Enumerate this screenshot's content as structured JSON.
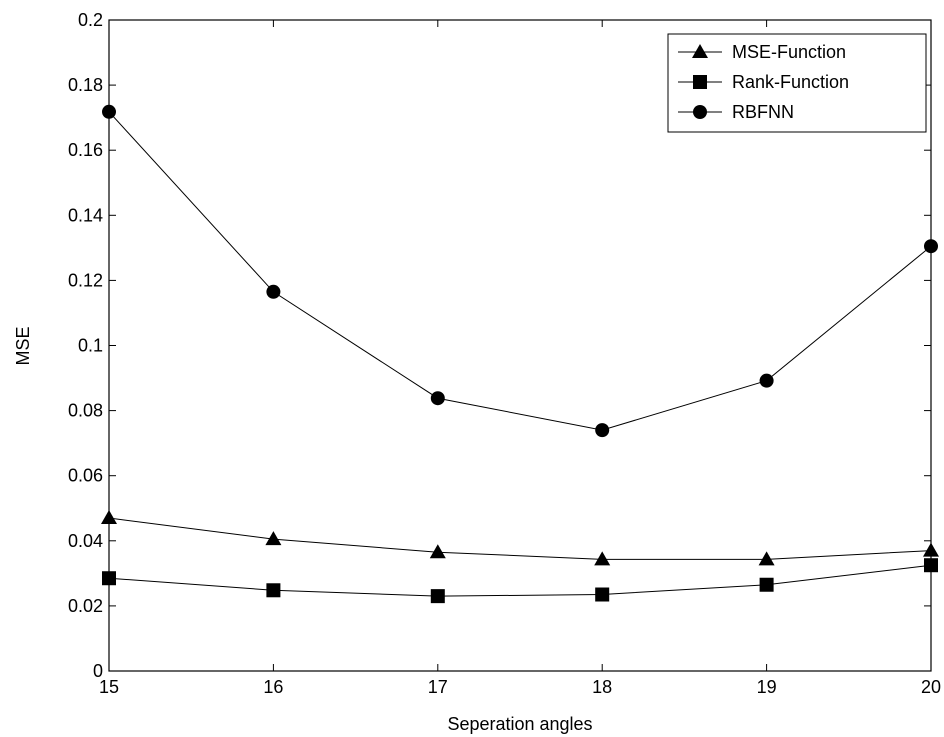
{
  "chart_data": {
    "type": "line",
    "xlabel": "Seperation angles",
    "ylabel": "MSE",
    "xlim": [
      15,
      20
    ],
    "ylim": [
      0,
      0.2
    ],
    "xticks": [
      15,
      16,
      17,
      18,
      19,
      20
    ],
    "yticks": [
      0,
      0.02,
      0.04,
      0.06,
      0.08,
      0.1,
      0.12,
      0.14,
      0.16,
      0.18,
      0.2
    ],
    "ytick_labels": [
      "0",
      "0.02",
      "0.04",
      "0.06",
      "0.08",
      "0.1",
      "0.12",
      "0.14",
      "0.16",
      "0.18",
      "0.2"
    ],
    "grid": false,
    "legend_position": "top-right",
    "x": [
      15,
      16,
      17,
      18,
      19,
      20
    ],
    "series": [
      {
        "name": "MSE-Function",
        "marker": "triangle",
        "values": [
          0.047,
          0.0405,
          0.0365,
          0.0343,
          0.0343,
          0.037
        ]
      },
      {
        "name": "Rank-Function",
        "marker": "square",
        "values": [
          0.0285,
          0.0248,
          0.023,
          0.0235,
          0.0265,
          0.0325
        ]
      },
      {
        "name": "RBFNN",
        "marker": "circle",
        "values": [
          0.1718,
          0.1165,
          0.0838,
          0.074,
          0.0892,
          0.1305
        ]
      }
    ],
    "colors": {
      "line": "#000000",
      "marker": "#000000",
      "background": "#ffffff"
    }
  }
}
